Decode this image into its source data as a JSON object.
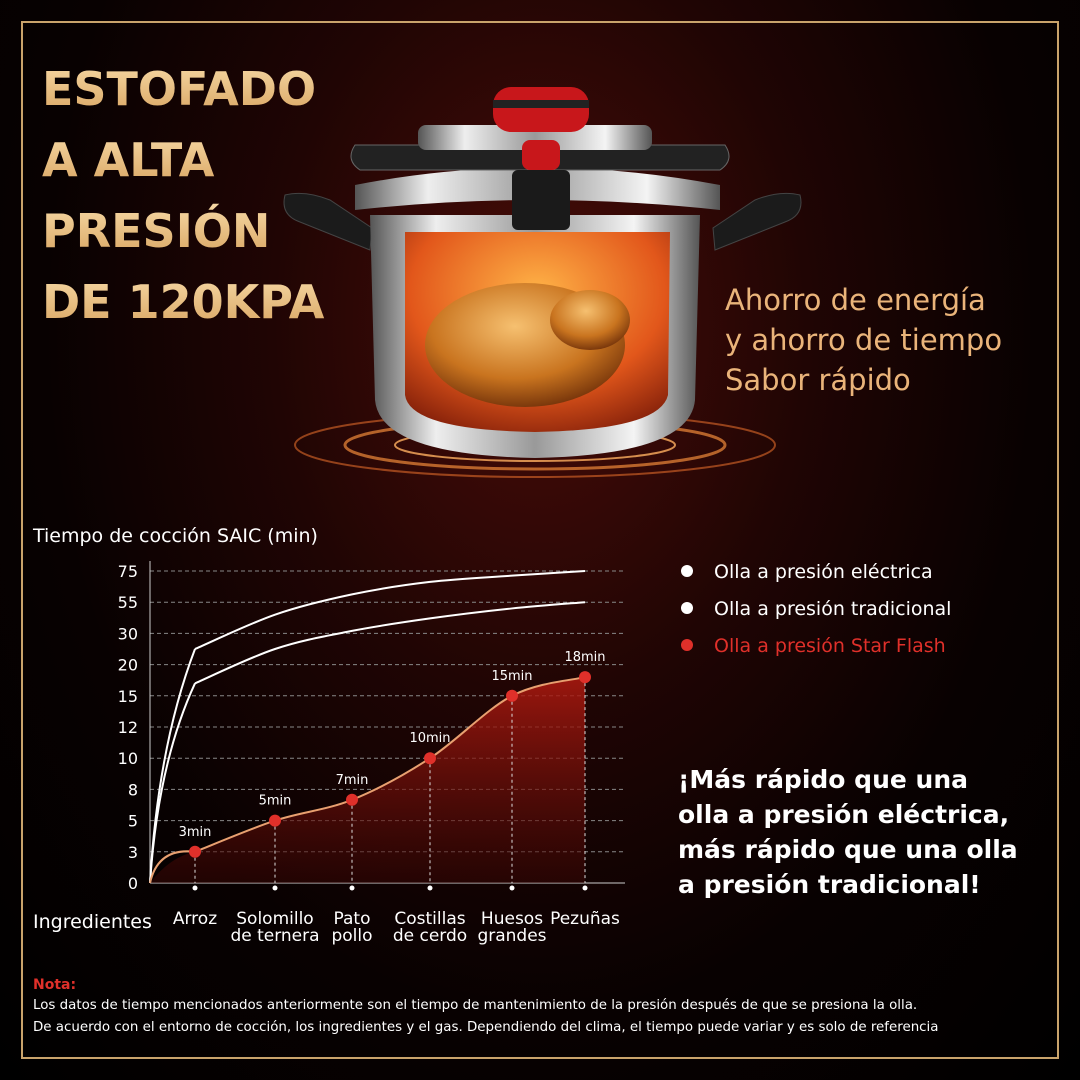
{
  "headline": [
    "ESTOFADO",
    "A ALTA",
    "PRESIÓN",
    "DE 120KPA"
  ],
  "tagline": [
    "Ahorro de energía",
    "y ahorro de tiempo",
    "Sabor rápido"
  ],
  "claim": [
    "¡Más rápido que una",
    "olla a presión eléctrica,",
    "más rápido que una olla",
    "a presión tradicional!"
  ],
  "note": {
    "title": "Nota:",
    "lines": [
      "Los datos de tiempo mencionados anteriormente son el tiempo de mantenimiento de la presión después de que se presiona la olla.",
      "De acuerdo con el entorno de cocción, los ingredientes y el gas. Dependiendo del clima, el tiempo puede variar y es solo de referencia"
    ]
  },
  "chart_data": {
    "type": "line",
    "title": "Tiempo de cocción SAIC (min)",
    "x_label": "Ingredientes",
    "categories": [
      "Arroz",
      "Solomillo\nde ternera",
      "Pato\npollo",
      "Costillas\nde cerdo",
      "Huesos\ngrandes",
      "Pezuñas"
    ],
    "series": [
      {
        "name": "Olla a presión eléctrica",
        "color": "#ffffff",
        "values": [
          25,
          45,
          60,
          68,
          72,
          75
        ]
      },
      {
        "name": "Olla a presión tradicional",
        "color": "#ffffff",
        "values": [
          17,
          25,
          32,
          42,
          50,
          55
        ]
      },
      {
        "name": "Olla a presión Star Flash",
        "color": "#e0302a",
        "values": [
          3,
          5,
          7,
          10,
          15,
          18
        ],
        "value_labels": [
          "3min",
          "5min",
          "7min",
          "10min",
          "15min",
          "18min"
        ],
        "area": true
      }
    ],
    "ylim": [
      0,
      75
    ],
    "yticks": [
      0,
      3,
      5,
      8,
      10,
      12,
      15,
      20,
      30,
      55,
      75
    ],
    "grid": true
  }
}
